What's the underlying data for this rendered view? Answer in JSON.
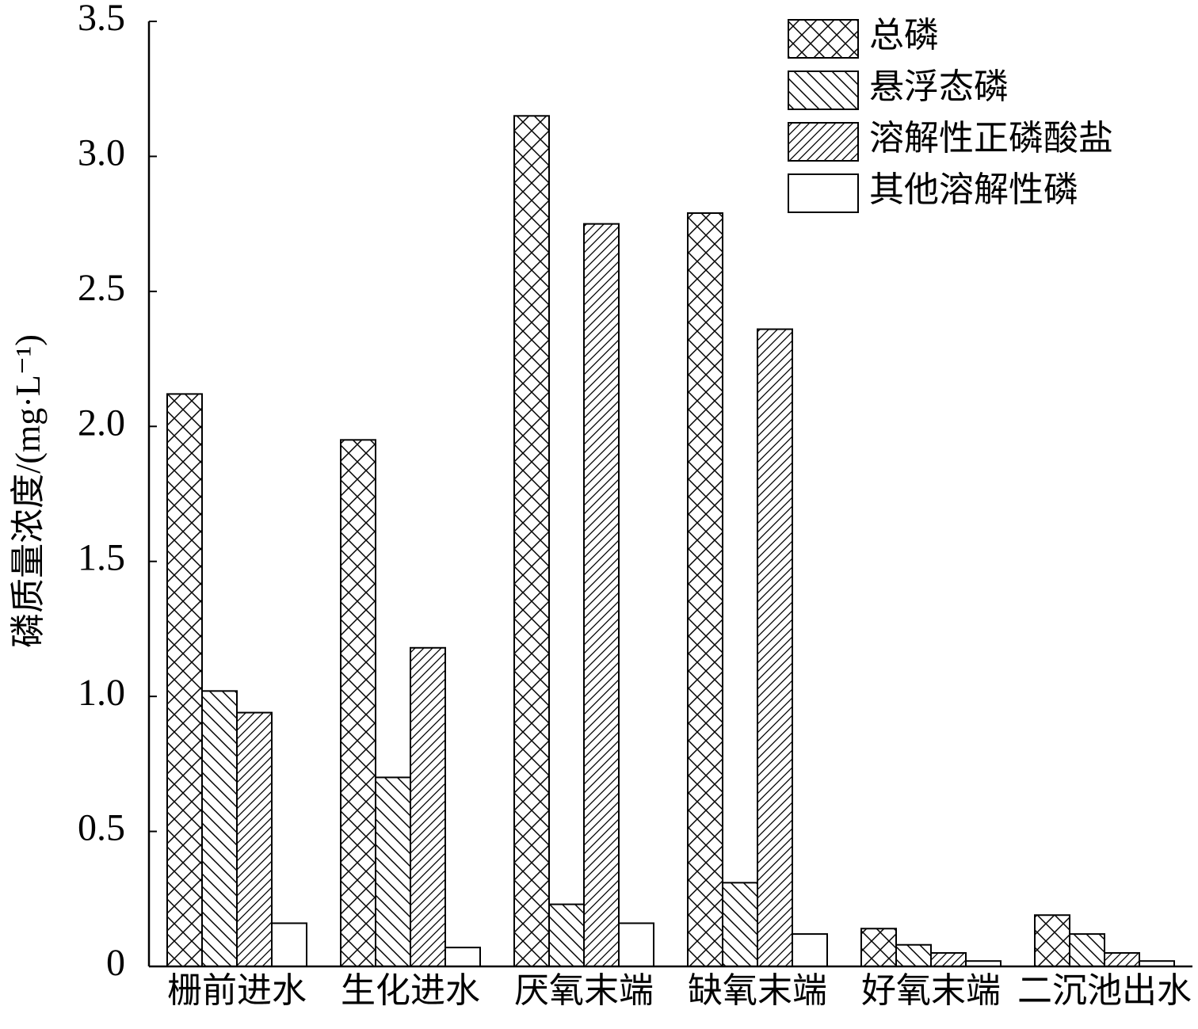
{
  "chart_data": {
    "type": "bar",
    "ylabel": "磷质量浓度/(mg·L⁻¹)",
    "categories": [
      "栅前进水",
      "生化进水",
      "厌氧末端",
      "缺氧末端",
      "好氧末端",
      "二沉池出水"
    ],
    "series": [
      {
        "name": "总磷",
        "color": "#000000",
        "pattern": "cross",
        "values": [
          2.12,
          1.95,
          3.15,
          2.79,
          0.14,
          0.19
        ]
      },
      {
        "name": "悬浮态磷",
        "color": "#000000",
        "pattern": "backslash",
        "values": [
          1.02,
          0.7,
          0.23,
          0.31,
          0.08,
          0.12
        ]
      },
      {
        "name": "溶解性正磷酸盐",
        "color": "#000000",
        "pattern": "slash",
        "values": [
          0.94,
          1.18,
          2.75,
          2.36,
          0.05,
          0.05
        ]
      },
      {
        "name": "其他溶解性磷",
        "color": "#000000",
        "pattern": "none",
        "values": [
          0.16,
          0.07,
          0.16,
          0.12,
          0.02,
          0.02
        ]
      }
    ],
    "ylim": [
      0,
      3.5
    ],
    "yticks": [
      0,
      0.5,
      {
        "value": 1,
        "label": "1.0"
      },
      1.5,
      {
        "value": 2,
        "label": "2.0"
      },
      2.5,
      {
        "value": 3,
        "label": "3.0"
      },
      3.5
    ],
    "grid": false,
    "legend": "upper right"
  }
}
